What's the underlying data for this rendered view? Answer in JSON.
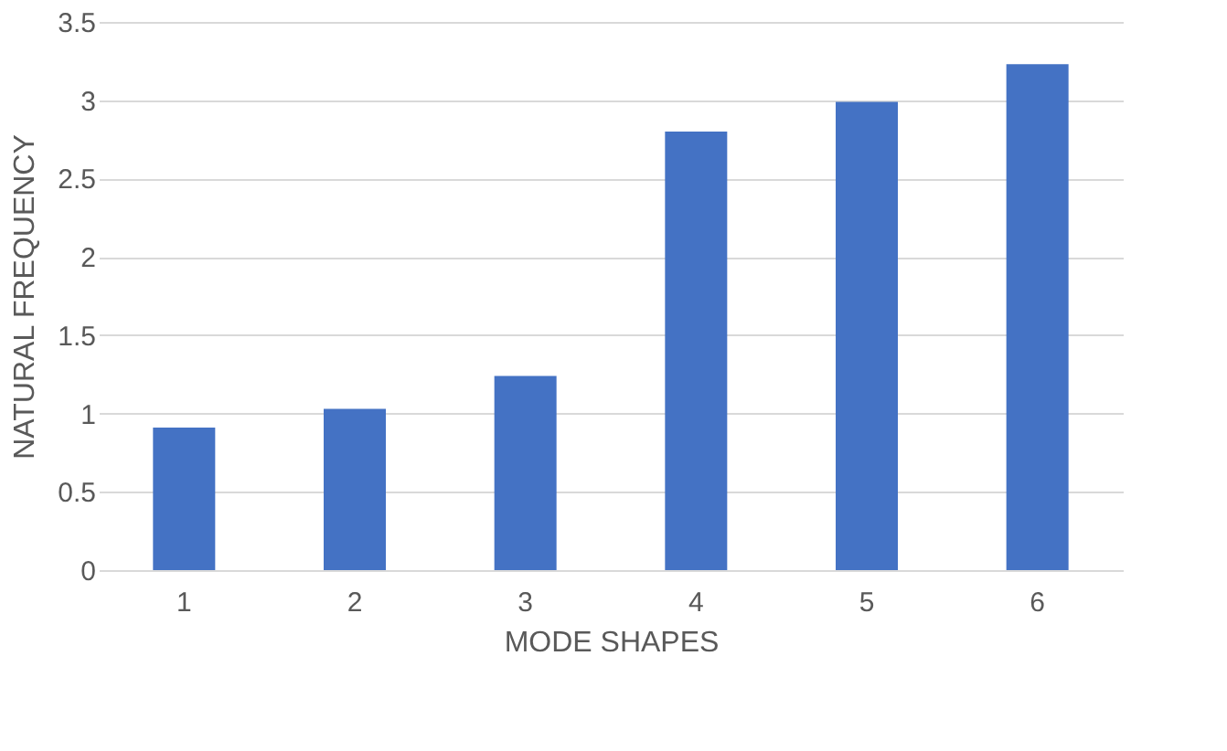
{
  "chart_data": {
    "type": "bar",
    "xlabel": "MODE SHAPES",
    "ylabel": "NATURAL FREQUENCY",
    "categories": [
      "1",
      "2",
      "3",
      "4",
      "5",
      "6"
    ],
    "values": [
      0.91,
      1.03,
      1.24,
      2.8,
      2.99,
      3.23
    ],
    "color": "#4472c4",
    "ylim": [
      0,
      3.5
    ],
    "yticks": [
      0,
      0.5,
      1,
      1.5,
      2,
      2.5,
      3,
      3.5
    ],
    "grid": "y"
  }
}
